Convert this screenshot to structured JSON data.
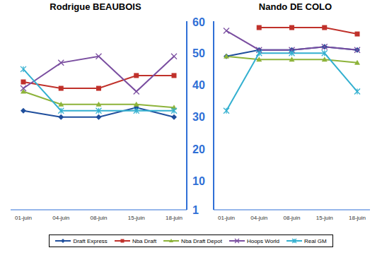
{
  "chart_data": [
    {
      "type": "line",
      "title": "Rodrigue BEAUBOIS",
      "x": [
        "01-juin",
        "04-juin",
        "08-juin",
        "15-juin",
        "18-juin"
      ],
      "ylim": [
        1,
        60
      ],
      "yticks": [
        1,
        10,
        20,
        30,
        40,
        50,
        60
      ],
      "grid": false,
      "legend": "bottom",
      "series": [
        {
          "name": "Draft Express",
          "color": "#1f4e9c",
          "marker": "diamond",
          "values": [
            32,
            30,
            30,
            33,
            30
          ]
        },
        {
          "name": "Nba Draft",
          "color": "#c0312b",
          "marker": "square",
          "values": [
            41,
            39,
            39,
            43,
            43
          ]
        },
        {
          "name": "Nba Draft Depot",
          "color": "#8db33a",
          "marker": "triangle",
          "values": [
            38,
            34,
            34,
            34,
            33
          ]
        },
        {
          "name": "Hoops World",
          "color": "#7a4ea0",
          "marker": "x",
          "values": [
            39,
            47,
            49,
            38,
            49
          ]
        },
        {
          "name": "Real GM",
          "color": "#33b0d0",
          "marker": "star",
          "values": [
            45,
            32,
            32,
            32,
            32
          ]
        }
      ]
    },
    {
      "type": "line",
      "title": "Nando DE COLO",
      "x": [
        "01-juin",
        "04-juin",
        "08-juin",
        "15-juin",
        "18-juin"
      ],
      "ylim": [
        1,
        60
      ],
      "yticks": [
        1,
        10,
        20,
        30,
        40,
        50,
        60
      ],
      "grid": false,
      "tick_labels": "x",
      "series": [
        {
          "name": "Draft Express",
          "color": "#1f4e9c",
          "marker": "diamond",
          "values": [
            49,
            51,
            51,
            52,
            51
          ]
        },
        {
          "name": "Nba Draft",
          "color": "#c0312b",
          "marker": "square",
          "values": [
            null,
            58,
            58,
            58,
            56
          ]
        },
        {
          "name": "Nba Draft Depot",
          "color": "#8db33a",
          "marker": "triangle",
          "values": [
            49,
            48,
            48,
            48,
            47
          ]
        },
        {
          "name": "Hoops World",
          "color": "#7a4ea0",
          "marker": "x",
          "values": [
            57,
            51,
            51,
            52,
            51
          ]
        },
        {
          "name": "Real GM",
          "color": "#33b0d0",
          "marker": "star",
          "values": [
            32,
            50,
            50,
            50,
            38
          ]
        }
      ]
    }
  ]
}
